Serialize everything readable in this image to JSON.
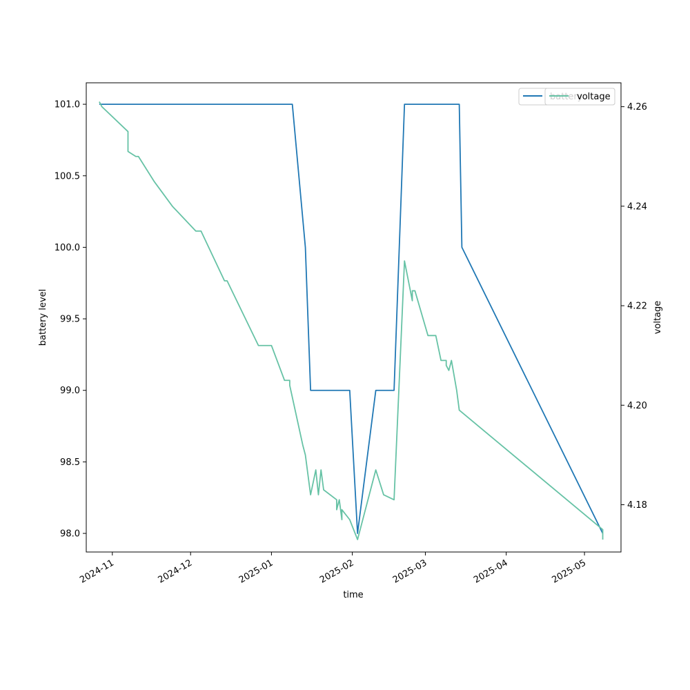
{
  "chart_data": {
    "type": "line",
    "title": "",
    "xlabel": "time",
    "ylabel_left": "battery level",
    "ylabel_right": "voltage",
    "xlim": [
      "2024-10-22",
      "2025-05-15"
    ],
    "ylim_left": [
      97.87,
      101.15
    ],
    "ylim_right": [
      4.1705,
      4.2648
    ],
    "x_ticks": [
      "2024-11",
      "2024-12",
      "2025-01",
      "2025-02",
      "2025-03",
      "2025-04",
      "2025-05"
    ],
    "y_ticks_left": [
      "98.0",
      "98.5",
      "99.0",
      "99.5",
      "100.0",
      "100.5",
      "101.0"
    ],
    "y_ticks_right": [
      "4.18",
      "4.20",
      "4.22",
      "4.24",
      "4.26"
    ],
    "legend": {
      "position": "top-right",
      "entries": [
        {
          "label": "battery",
          "color": "#1f77b4"
        },
        {
          "label": "voltage",
          "color": "#66c2a5"
        }
      ]
    },
    "series": [
      {
        "name": "battery",
        "axis": "left",
        "color": "#1f77b4",
        "points": [
          [
            "2024-10-27",
            101.0
          ],
          [
            "2025-01-09",
            101.0
          ],
          [
            "2025-01-14",
            100.0
          ],
          [
            "2025-01-14",
            100.0
          ],
          [
            "2025-01-16",
            99.0
          ],
          [
            "2025-01-31",
            99.0
          ],
          [
            "2025-02-03",
            98.0
          ],
          [
            "2025-02-10",
            99.0
          ],
          [
            "2025-02-17",
            99.0
          ],
          [
            "2025-02-21",
            101.0
          ],
          [
            "2025-03-14",
            101.0
          ],
          [
            "2025-03-15",
            100.0
          ],
          [
            "2025-05-08",
            98.0
          ]
        ]
      },
      {
        "name": "voltage",
        "axis": "right",
        "color": "#66c2a5",
        "points": [
          [
            "2024-10-27",
            4.261
          ],
          [
            "2024-10-28",
            4.26
          ],
          [
            "2024-11-07",
            4.255
          ],
          [
            "2024-11-07",
            4.251
          ],
          [
            "2024-11-10",
            4.25
          ],
          [
            "2024-11-11",
            4.25
          ],
          [
            "2024-11-17",
            4.245
          ],
          [
            "2024-11-24",
            4.24
          ],
          [
            "2024-12-03",
            4.235
          ],
          [
            "2024-12-05",
            4.235
          ],
          [
            "2024-12-14",
            4.225
          ],
          [
            "2024-12-15",
            4.225
          ],
          [
            "2024-12-27",
            4.212
          ],
          [
            "2025-01-01",
            4.212
          ],
          [
            "2025-01-06",
            4.205
          ],
          [
            "2025-01-08",
            4.205
          ],
          [
            "2025-01-08",
            4.204
          ],
          [
            "2025-01-13",
            4.192
          ],
          [
            "2025-01-14",
            4.19
          ],
          [
            "2025-01-16",
            4.182
          ],
          [
            "2025-01-18",
            4.187
          ],
          [
            "2025-01-19",
            4.182
          ],
          [
            "2025-01-20",
            4.187
          ],
          [
            "2025-01-21",
            4.183
          ],
          [
            "2025-01-26",
            4.181
          ],
          [
            "2025-01-26",
            4.179
          ],
          [
            "2025-01-27",
            4.181
          ],
          [
            "2025-01-28",
            4.177
          ],
          [
            "2025-01-28",
            4.179
          ],
          [
            "2025-01-31",
            4.177
          ],
          [
            "2025-02-03",
            4.173
          ],
          [
            "2025-02-10",
            4.187
          ],
          [
            "2025-02-13",
            4.182
          ],
          [
            "2025-02-17",
            4.181
          ],
          [
            "2025-02-21",
            4.229
          ],
          [
            "2025-02-24",
            4.221
          ],
          [
            "2025-02-24",
            4.223
          ],
          [
            "2025-02-25",
            4.223
          ],
          [
            "2025-03-02",
            4.214
          ],
          [
            "2025-03-05",
            4.214
          ],
          [
            "2025-03-07",
            4.209
          ],
          [
            "2025-03-09",
            4.209
          ],
          [
            "2025-03-09",
            4.208
          ],
          [
            "2025-03-10",
            4.207
          ],
          [
            "2025-03-11",
            4.209
          ],
          [
            "2025-03-13",
            4.203
          ],
          [
            "2025-03-14",
            4.199
          ],
          [
            "2025-05-08",
            4.175
          ],
          [
            "2025-05-08",
            4.173
          ]
        ]
      }
    ]
  }
}
